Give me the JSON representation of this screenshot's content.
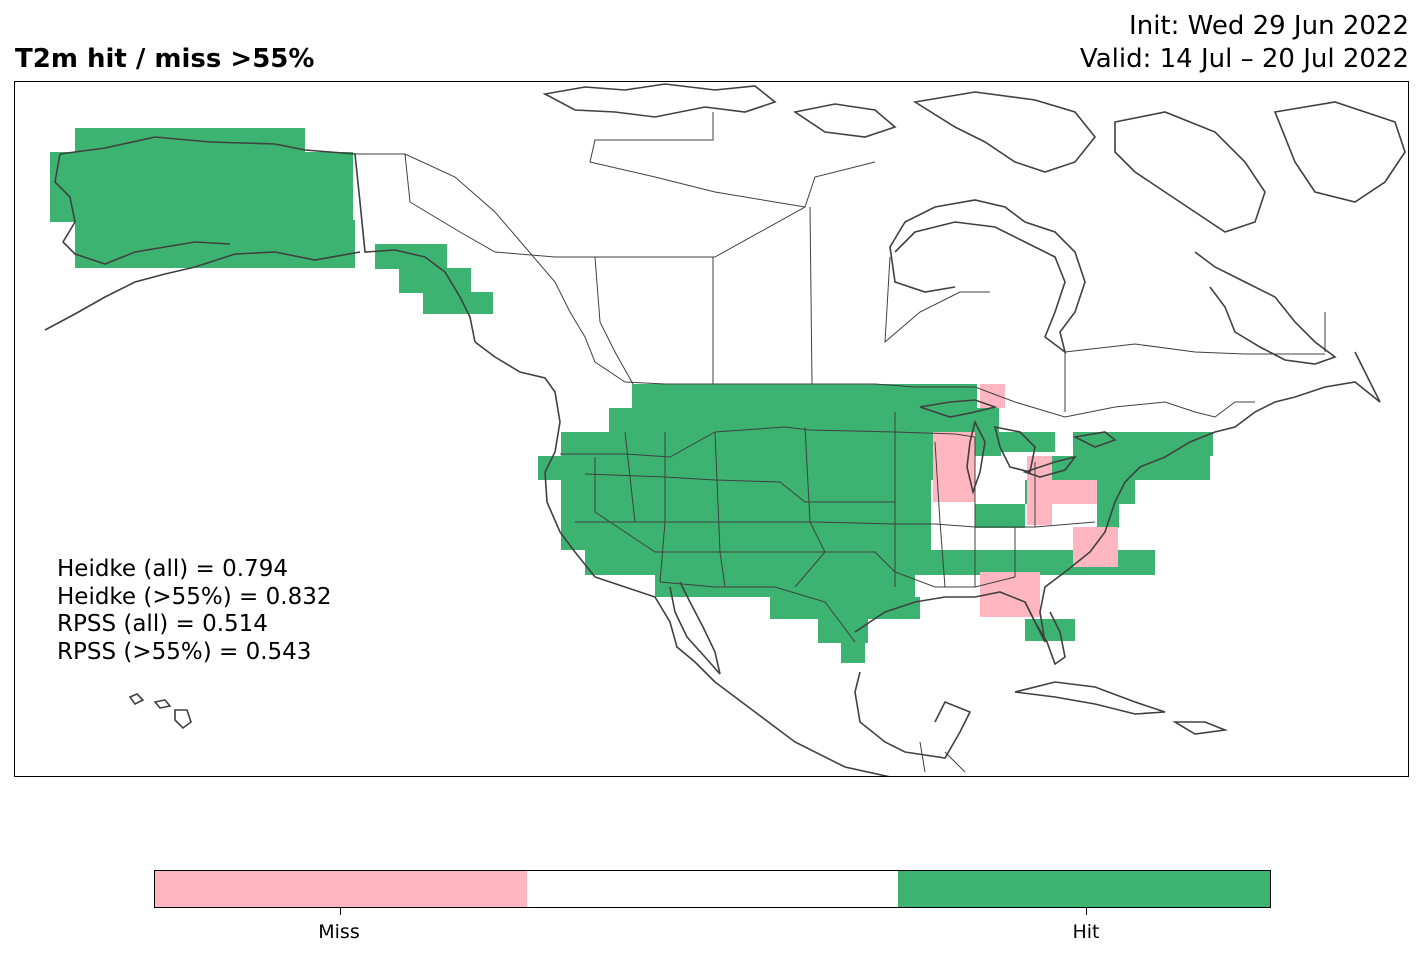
{
  "header": {
    "title": "T2m hit / miss  >55%",
    "init": "Init: Wed 29 Jun 2022",
    "valid": "Valid: 14 Jul – 20 Jul 2022"
  },
  "scores": {
    "heidke_all": "Heidke (all) = 0.794",
    "heidke_55": "Heidke (>55%) = 0.832",
    "rpss_all": "RPSS (all) = 0.514",
    "rpss_55": "RPSS (>55%) = 0.543"
  },
  "colors": {
    "miss": "#ffb6c1",
    "neutral": "#ffffff",
    "hit": "#3cb371",
    "coast": "#404040"
  },
  "legend": {
    "categories": [
      {
        "key": "miss",
        "label": "Miss"
      },
      {
        "key": "neutral",
        "label": ""
      },
      {
        "key": "hit",
        "label": "Hit"
      }
    ]
  }
}
